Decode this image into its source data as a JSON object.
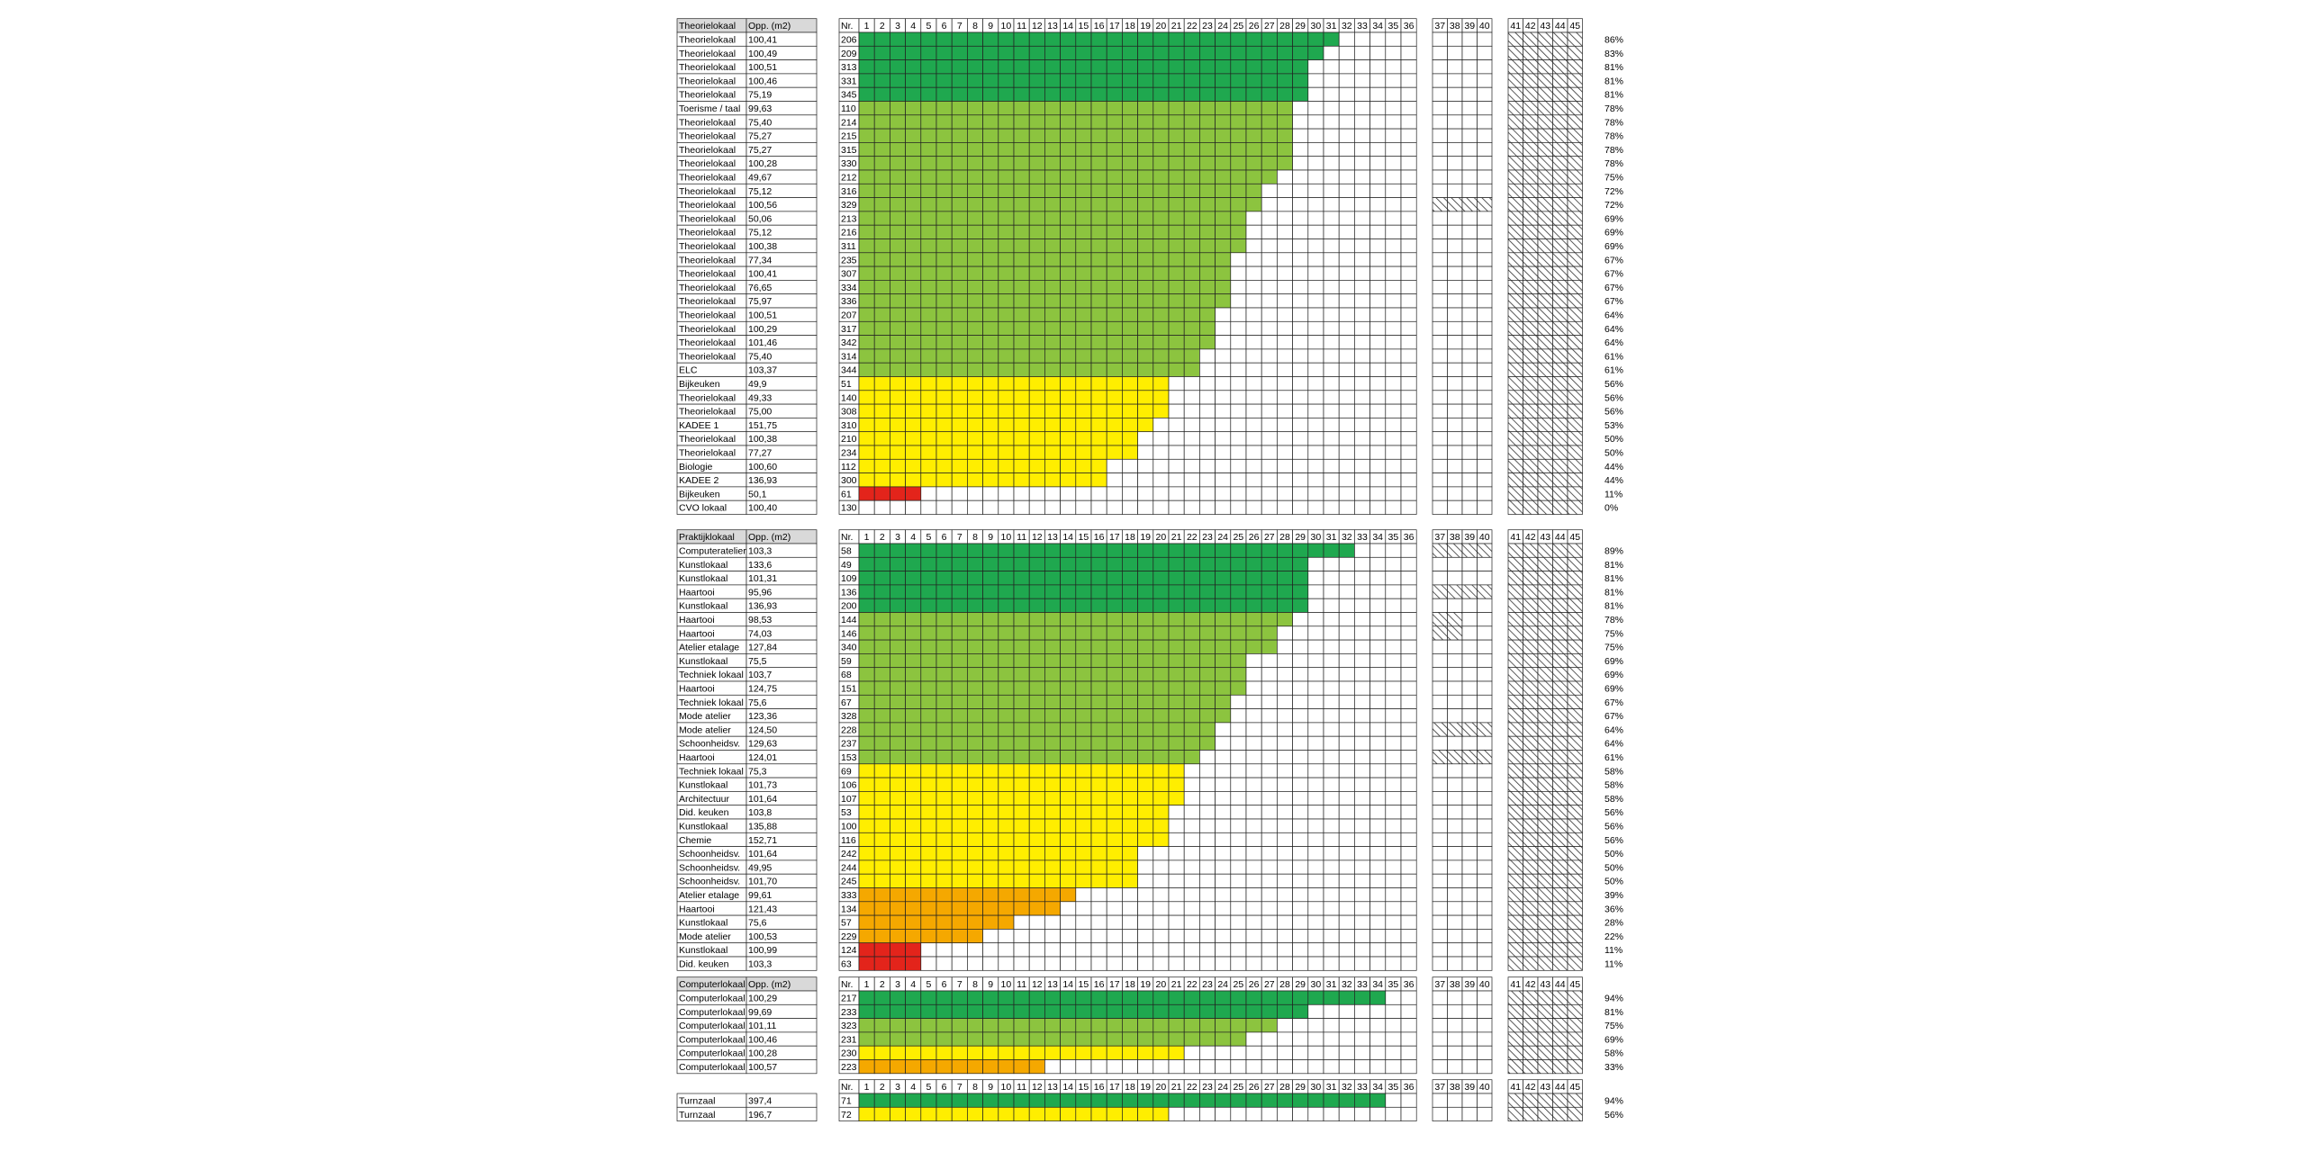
{
  "chart_data": {
    "type": "heatmap",
    "slot_headers": [
      "1",
      "2",
      "3",
      "4",
      "5",
      "6",
      "7",
      "8",
      "9",
      "10",
      "11",
      "12",
      "13",
      "14",
      "15",
      "16",
      "17",
      "18",
      "19",
      "20",
      "21",
      "22",
      "23",
      "24",
      "25",
      "26",
      "27",
      "28",
      "29",
      "30",
      "31",
      "32",
      "33",
      "34",
      "35",
      "36"
    ],
    "extra_headers_a": [
      "37",
      "38",
      "39",
      "40"
    ],
    "extra_headers_b": [
      "41",
      "42",
      "43",
      "44",
      "45"
    ],
    "nr_header": "Nr.",
    "legend_colors": {
      "dark_green": "#1fa84f",
      "light_green": "#8cc43f",
      "yellow": "#ffee00",
      "orange": "#f5a800",
      "red": "#e3241b",
      "empty": "#ffffff",
      "header_bg": "#d9d9d9"
    },
    "groups": [
      {
        "header": "Theorielokaal",
        "area_header": "Opp. (m2)",
        "rows": [
          {
            "name": "Theorielokaal",
            "area": "100,41",
            "nr": "206",
            "filled": 31,
            "color": "dark_green",
            "pct": "86%",
            "hatch_a": false
          },
          {
            "name": "Theorielokaal",
            "area": "100,49",
            "nr": "209",
            "filled": 30,
            "color": "dark_green",
            "pct": "83%",
            "hatch_a": false
          },
          {
            "name": "Theorielokaal",
            "area": "100,51",
            "nr": "313",
            "filled": 29,
            "color": "dark_green",
            "pct": "81%",
            "hatch_a": false
          },
          {
            "name": "Theorielokaal",
            "area": "100,46",
            "nr": "331",
            "filled": 29,
            "color": "dark_green",
            "pct": "81%",
            "hatch_a": false
          },
          {
            "name": "Theorielokaal",
            "area": "75,19",
            "nr": "345",
            "filled": 29,
            "color": "dark_green",
            "pct": "81%",
            "hatch_a": false
          },
          {
            "name": "Toerisme / taal",
            "area": "99,63",
            "nr": "110",
            "filled": 28,
            "color": "light_green",
            "pct": "78%",
            "hatch_a": false
          },
          {
            "name": "Theorielokaal",
            "area": "75,40",
            "nr": "214",
            "filled": 28,
            "color": "light_green",
            "pct": "78%",
            "hatch_a": false
          },
          {
            "name": "Theorielokaal",
            "area": "75,27",
            "nr": "215",
            "filled": 28,
            "color": "light_green",
            "pct": "78%",
            "hatch_a": false
          },
          {
            "name": "Theorielokaal",
            "area": "75,27",
            "nr": "315",
            "filled": 28,
            "color": "light_green",
            "pct": "78%",
            "hatch_a": false
          },
          {
            "name": "Theorielokaal",
            "area": "100,28",
            "nr": "330",
            "filled": 28,
            "color": "light_green",
            "pct": "78%",
            "hatch_a": false
          },
          {
            "name": "Theorielokaal",
            "area": "49,67",
            "nr": "212",
            "filled": 27,
            "color": "light_green",
            "pct": "75%",
            "hatch_a": false
          },
          {
            "name": "Theorielokaal",
            "area": "75,12",
            "nr": "316",
            "filled": 26,
            "color": "light_green",
            "pct": "72%",
            "hatch_a": false
          },
          {
            "name": "Theorielokaal",
            "area": "100,56",
            "nr": "329",
            "filled": 26,
            "color": "light_green",
            "pct": "72%",
            "hatch_a": true
          },
          {
            "name": "Theorielokaal",
            "area": "50,06",
            "nr": "213",
            "filled": 25,
            "color": "light_green",
            "pct": "69%",
            "hatch_a": false
          },
          {
            "name": "Theorielokaal",
            "area": "75,12",
            "nr": "216",
            "filled": 25,
            "color": "light_green",
            "pct": "69%",
            "hatch_a": false
          },
          {
            "name": "Theorielokaal",
            "area": "100,38",
            "nr": "311",
            "filled": 25,
            "color": "light_green",
            "pct": "69%",
            "hatch_a": false
          },
          {
            "name": "Theorielokaal",
            "area": "77,34",
            "nr": "235",
            "filled": 24,
            "color": "light_green",
            "pct": "67%",
            "hatch_a": false
          },
          {
            "name": "Theorielokaal",
            "area": "100,41",
            "nr": "307",
            "filled": 24,
            "color": "light_green",
            "pct": "67%",
            "hatch_a": false
          },
          {
            "name": "Theorielokaal",
            "area": "76,65",
            "nr": "334",
            "filled": 24,
            "color": "light_green",
            "pct": "67%",
            "hatch_a": false
          },
          {
            "name": "Theorielokaal",
            "area": "75,97",
            "nr": "336",
            "filled": 24,
            "color": "light_green",
            "pct": "67%",
            "hatch_a": false
          },
          {
            "name": "Theorielokaal",
            "area": "100,51",
            "nr": "207",
            "filled": 23,
            "color": "light_green",
            "pct": "64%",
            "hatch_a": false
          },
          {
            "name": "Theorielokaal",
            "area": "100,29",
            "nr": "317",
            "filled": 23,
            "color": "light_green",
            "pct": "64%",
            "hatch_a": false
          },
          {
            "name": "Theorielokaal",
            "area": "101,46",
            "nr": "342",
            "filled": 23,
            "color": "light_green",
            "pct": "64%",
            "hatch_a": false
          },
          {
            "name": "Theorielokaal",
            "area": "75,40",
            "nr": "314",
            "filled": 22,
            "color": "light_green",
            "pct": "61%",
            "hatch_a": false
          },
          {
            "name": "ELC",
            "area": "103,37",
            "nr": "344",
            "filled": 22,
            "color": "light_green",
            "pct": "61%",
            "hatch_a": false
          },
          {
            "name": "Bijkeuken",
            "area": "49,9",
            "nr": "51",
            "filled": 20,
            "color": "yellow",
            "pct": "56%",
            "hatch_a": false
          },
          {
            "name": "Theorielokaal",
            "area": "49,33",
            "nr": "140",
            "filled": 20,
            "color": "yellow",
            "pct": "56%",
            "hatch_a": false
          },
          {
            "name": "Theorielokaal",
            "area": "75,00",
            "nr": "308",
            "filled": 20,
            "color": "yellow",
            "pct": "56%",
            "hatch_a": false
          },
          {
            "name": "KADEE 1",
            "area": "151,75",
            "nr": "310",
            "filled": 19,
            "color": "yellow",
            "pct": "53%",
            "hatch_a": false
          },
          {
            "name": "Theorielokaal",
            "area": "100,38",
            "nr": "210",
            "filled": 18,
            "color": "yellow",
            "pct": "50%",
            "hatch_a": false
          },
          {
            "name": "Theorielokaal",
            "area": "77,27",
            "nr": "234",
            "filled": 18,
            "color": "yellow",
            "pct": "50%",
            "hatch_a": false
          },
          {
            "name": "Biologie",
            "area": "100,60",
            "nr": "112",
            "filled": 16,
            "color": "yellow",
            "pct": "44%",
            "hatch_a": false
          },
          {
            "name": "KADEE 2",
            "area": "136,93",
            "nr": "300",
            "filled": 16,
            "color": "yellow",
            "pct": "44%",
            "hatch_a": false
          },
          {
            "name": "Bijkeuken",
            "area": "50,1",
            "nr": "61",
            "filled": 4,
            "color": "red",
            "pct": "11%",
            "hatch_a": false
          },
          {
            "name": "CVO lokaal",
            "area": "100,40",
            "nr": "130",
            "filled": 0,
            "color": "empty",
            "pct": "0%",
            "hatch_a": false
          }
        ]
      },
      {
        "header": "Praktijklokaal",
        "area_header": "Opp. (m2)",
        "rows": [
          {
            "name": "Computeratelier",
            "area": "103,3",
            "nr": "58",
            "filled": 32,
            "color": "dark_green",
            "pct": "89%",
            "hatch_a": true
          },
          {
            "name": "Kunstlokaal",
            "area": "133,6",
            "nr": "49",
            "filled": 29,
            "color": "dark_green",
            "pct": "81%",
            "hatch_a": false
          },
          {
            "name": "Kunstlokaal",
            "area": "101,31",
            "nr": "109",
            "filled": 29,
            "color": "dark_green",
            "pct": "81%",
            "hatch_a": false
          },
          {
            "name": "Haartooi",
            "area": "95,96",
            "nr": "136",
            "filled": 29,
            "color": "dark_green",
            "pct": "81%",
            "hatch_a": true
          },
          {
            "name": "Kunstlokaal",
            "area": "136,93",
            "nr": "200",
            "filled": 29,
            "color": "dark_green",
            "pct": "81%",
            "hatch_a": false
          },
          {
            "name": "Haartooi",
            "area": "98,53",
            "nr": "144",
            "filled": 28,
            "color": "light_green",
            "pct": "78%",
            "hatch_a": "half"
          },
          {
            "name": "Haartooi",
            "area": "74,03",
            "nr": "146",
            "filled": 27,
            "color": "light_green",
            "pct": "75%",
            "hatch_a": "half"
          },
          {
            "name": "Atelier etalage",
            "area": "127,84",
            "nr": "340",
            "filled": 27,
            "color": "light_green",
            "pct": "75%",
            "hatch_a": false
          },
          {
            "name": "Kunstlokaal",
            "area": "75,5",
            "nr": "59",
            "filled": 25,
            "color": "light_green",
            "pct": "69%",
            "hatch_a": false
          },
          {
            "name": "Techniek lokaal",
            "area": "103,7",
            "nr": "68",
            "filled": 25,
            "color": "light_green",
            "pct": "69%",
            "hatch_a": false
          },
          {
            "name": "Haartooi",
            "area": "124,75",
            "nr": "151",
            "filled": 25,
            "color": "light_green",
            "pct": "69%",
            "hatch_a": false
          },
          {
            "name": "Techniek lokaal",
            "area": "75,6",
            "nr": "67",
            "filled": 24,
            "color": "light_green",
            "pct": "67%",
            "hatch_a": false
          },
          {
            "name": "Mode atelier",
            "area": "123,36",
            "nr": "328",
            "filled": 24,
            "color": "light_green",
            "pct": "67%",
            "hatch_a": false
          },
          {
            "name": "Mode atelier",
            "area": "124,50",
            "nr": "228",
            "filled": 23,
            "color": "light_green",
            "pct": "64%",
            "hatch_a": true
          },
          {
            "name": "Schoonheidsv.",
            "area": "129,63",
            "nr": "237",
            "filled": 23,
            "color": "light_green",
            "pct": "64%",
            "hatch_a": false
          },
          {
            "name": "Haartooi",
            "area": "124,01",
            "nr": "153",
            "filled": 22,
            "color": "light_green",
            "pct": "61%",
            "hatch_a": true
          },
          {
            "name": "Techniek lokaal",
            "area": "75,3",
            "nr": "69",
            "filled": 21,
            "color": "yellow",
            "pct": "58%",
            "hatch_a": false
          },
          {
            "name": "Kunstlokaal",
            "area": "101,73",
            "nr": "106",
            "filled": 21,
            "color": "yellow",
            "pct": "58%",
            "hatch_a": false
          },
          {
            "name": "Architectuur",
            "area": "101,64",
            "nr": "107",
            "filled": 21,
            "color": "yellow",
            "pct": "58%",
            "hatch_a": false
          },
          {
            "name": "Did. keuken",
            "area": "103,8",
            "nr": "53",
            "filled": 20,
            "color": "yellow",
            "pct": "56%",
            "hatch_a": false
          },
          {
            "name": "Kunstlokaal",
            "area": "135,88",
            "nr": "100",
            "filled": 20,
            "color": "yellow",
            "pct": "56%",
            "hatch_a": false
          },
          {
            "name": "Chemie",
            "area": "152,71",
            "nr": "116",
            "filled": 20,
            "color": "yellow",
            "pct": "56%",
            "hatch_a": false
          },
          {
            "name": "Schoonheidsv.",
            "area": "101,64",
            "nr": "242",
            "filled": 18,
            "color": "yellow",
            "pct": "50%",
            "hatch_a": false
          },
          {
            "name": "Schoonheidsv.",
            "area": "49,95",
            "nr": "244",
            "filled": 18,
            "color": "yellow",
            "pct": "50%",
            "hatch_a": false
          },
          {
            "name": "Schoonheidsv.",
            "area": "101,70",
            "nr": "245",
            "filled": 18,
            "color": "yellow",
            "pct": "50%",
            "hatch_a": false
          },
          {
            "name": "Atelier etalage",
            "area": "99,61",
            "nr": "333",
            "filled": 14,
            "color": "orange",
            "pct": "39%",
            "hatch_a": false
          },
          {
            "name": "Haartooi",
            "area": "121,43",
            "nr": "134",
            "filled": 13,
            "color": "orange",
            "pct": "36%",
            "hatch_a": false
          },
          {
            "name": "Kunstlokaal",
            "area": "75,6",
            "nr": "57",
            "filled": 10,
            "color": "orange",
            "pct": "28%",
            "hatch_a": false
          },
          {
            "name": "Mode atelier",
            "area": "100,53",
            "nr": "229",
            "filled": 8,
            "color": "orange",
            "pct": "22%",
            "hatch_a": false
          },
          {
            "name": "Kunstlokaal",
            "area": "100,99",
            "nr": "124",
            "filled": 4,
            "color": "red",
            "pct": "11%",
            "hatch_a": false
          },
          {
            "name": "Did. keuken",
            "area": "103,3",
            "nr": "63",
            "filled": 4,
            "color": "red",
            "pct": "11%",
            "hatch_a": false
          }
        ]
      },
      {
        "header": "Computerlokaal",
        "area_header": "Opp. (m2)",
        "rows": [
          {
            "name": "Computerlokaal",
            "area": "100,29",
            "nr": "217",
            "filled": 34,
            "color": "dark_green",
            "pct": "94%",
            "hatch_a": false
          },
          {
            "name": "Computerlokaal",
            "area": "99,69",
            "nr": "233",
            "filled": 29,
            "color": "dark_green",
            "pct": "81%",
            "hatch_a": false
          },
          {
            "name": "Computerlokaal",
            "area": "101,11",
            "nr": "323",
            "filled": 27,
            "color": "light_green",
            "pct": "75%",
            "hatch_a": false
          },
          {
            "name": "Computerlokaal",
            "area": "100,46",
            "nr": "231",
            "filled": 25,
            "color": "light_green",
            "pct": "69%",
            "hatch_a": false
          },
          {
            "name": "Computerlokaal",
            "area": "100,28",
            "nr": "230",
            "filled": 21,
            "color": "yellow",
            "pct": "58%",
            "hatch_a": false
          },
          {
            "name": "Computerlokaal",
            "area": "100,57",
            "nr": "223",
            "filled": 12,
            "color": "orange",
            "pct": "33%",
            "hatch_a": false
          }
        ]
      },
      {
        "header": "",
        "area_header": "",
        "rows": [
          {
            "name": "Turnzaal",
            "area": "397,4",
            "nr": "71",
            "filled": 34,
            "color": "dark_green",
            "pct": "94%",
            "hatch_a": false
          },
          {
            "name": "Turnzaal",
            "area": "196,7",
            "nr": "72",
            "filled": 20,
            "color": "yellow",
            "pct": "56%",
            "hatch_a": false
          }
        ]
      }
    ]
  }
}
